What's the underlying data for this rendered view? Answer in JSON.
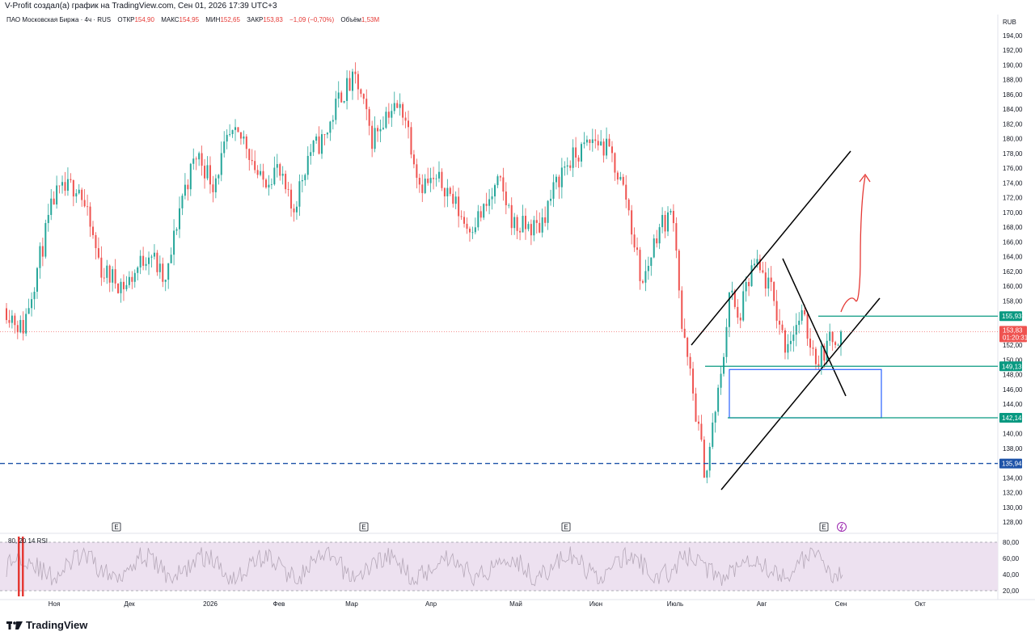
{
  "caption": "V-Profit создал(а) график на TradingView.com, Сен 01, 2026 17:39 UTC+3",
  "legend": {
    "symbol": "ПАО Московская Биржа · 4ч · RUS",
    "open_label": "ОТКР",
    "open": "154,90",
    "high_label": "МАКС",
    "high": "154,95",
    "low_label": "МИН",
    "low": "152,65",
    "close_label": "ЗАКР",
    "close": "153,83",
    "change": "−1,09 (−0,70%)",
    "volume_label": "Объём",
    "volume": "1,53M"
  },
  "currency": "RUB",
  "brand": "TradingView",
  "colors": {
    "up": "#26a69a",
    "down": "#ef5350",
    "green_line": "#089981",
    "blue_box": "#2962ff",
    "dash_line": "#1e53a8",
    "red_arrow": "#e53935",
    "rsi_band": "#ede1f0",
    "rsi_line": "#b5a8b8"
  },
  "chart_data": [
    {
      "type": "candlestick",
      "title": "",
      "ylim": [
        127,
        196
      ],
      "y_ticks": [
        "194,00",
        "192,00",
        "190,00",
        "188,00",
        "186,00",
        "184,00",
        "182,00",
        "180,00",
        "178,00",
        "176,00",
        "174,00",
        "172,00",
        "170,00",
        "168,00",
        "166,00",
        "164,00",
        "162,00",
        "160,00",
        "158,00",
        "156,00",
        "152,00",
        "150,00",
        "148,00",
        "146,00",
        "144,00",
        "140,00",
        "138,00",
        "134,00",
        "132,00",
        "130,00",
        "128,00"
      ],
      "x_labels": [
        "Ноя",
        "Дек",
        "2026",
        "Фев",
        "Мар",
        "Апр",
        "Май",
        "Июн",
        "Июль",
        "Авг",
        "Сен",
        "Окт"
      ],
      "price_path": [
        [
          0,
          157
        ],
        [
          2,
          154
        ],
        [
          6,
          172
        ],
        [
          9,
          174
        ],
        [
          12,
          162
        ],
        [
          15,
          160
        ],
        [
          18,
          165
        ],
        [
          20,
          160
        ],
        [
          22,
          172
        ],
        [
          24,
          178
        ],
        [
          26,
          174
        ],
        [
          28,
          180
        ],
        [
          30,
          180
        ],
        [
          32,
          174
        ],
        [
          34,
          176
        ],
        [
          36,
          170
        ],
        [
          38,
          178
        ],
        [
          40,
          180
        ],
        [
          42,
          186
        ],
        [
          44,
          188
        ],
        [
          46,
          180
        ],
        [
          48,
          184
        ],
        [
          50,
          184
        ],
        [
          52,
          174
        ],
        [
          55,
          174
        ],
        [
          58,
          168
        ],
        [
          60,
          170
        ],
        [
          62,
          174
        ],
        [
          64,
          168
        ],
        [
          67,
          168
        ],
        [
          70,
          176
        ],
        [
          72,
          178
        ],
        [
          74,
          180
        ],
        [
          76,
          178
        ],
        [
          78,
          172
        ],
        [
          80,
          160
        ],
        [
          82,
          168
        ],
        [
          84,
          170
        ],
        [
          85,
          154
        ],
        [
          86,
          148
        ],
        [
          88,
          134
        ],
        [
          89,
          142
        ],
        [
          90,
          148
        ],
        [
          91,
          160
        ],
        [
          92,
          155
        ],
        [
          94,
          163
        ],
        [
          96,
          160
        ],
        [
          98,
          152
        ],
        [
          100,
          156
        ],
        [
          102,
          150
        ],
        [
          104,
          153
        ],
        [
          105,
          153.83
        ]
      ],
      "horizontal_levels": [
        {
          "price_label": "155,93",
          "value": 155.93
        },
        {
          "price_label": "149,13",
          "value": 149.13
        },
        {
          "price_label": "142,14",
          "value": 142.14
        },
        {
          "price_label": "135,94",
          "value": 135.94
        }
      ],
      "current_price": {
        "value": 153.83,
        "label": "153,83",
        "countdown": "01:20:31"
      },
      "events": [
        "E",
        "E",
        "E",
        "E"
      ]
    },
    {
      "type": "line",
      "title": "",
      "indicator_label": "80, 20 14 RSI",
      "ylim": [
        18,
        82
      ],
      "y_ticks": [
        "80,00",
        "60,00",
        "40,00",
        "20,00"
      ],
      "levels": [
        80,
        20
      ]
    }
  ]
}
